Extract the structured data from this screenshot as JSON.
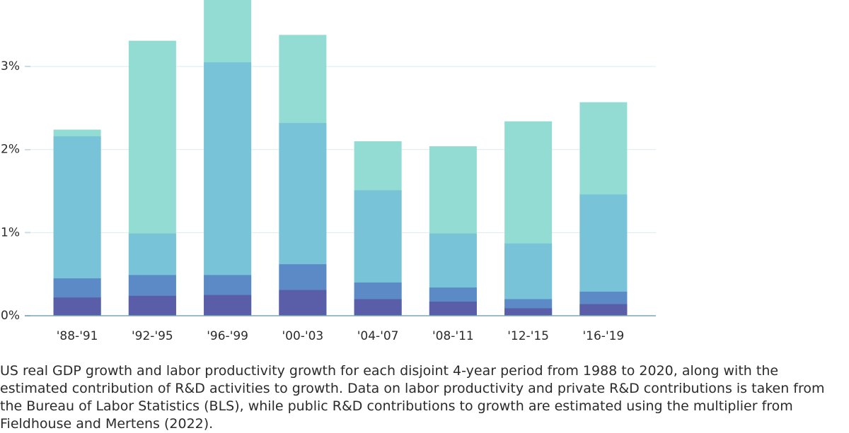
{
  "chart_data": {
    "type": "bar",
    "overlap": true,
    "caption": "US real GDP growth and labor productivity growth for each disjoint 4-year period from 1988 to 2020, along with the estimated contribution of R&D activities to growth. Data on labor productivity and private R&D contributions is taken from the Bureau of Labor Statistics (BLS), while public R&D contributions to growth are estimated using the multiplier from Fieldhouse and Mertens (2022).",
    "categories": [
      "'88-'91",
      "'92-'95",
      "'96-'99",
      "'00-'03",
      "'04-'07",
      "'08-'11",
      "'12-'15",
      "'16-'19"
    ],
    "series": [
      {
        "color": "#93dcd4",
        "values": [
          2.24,
          3.31,
          3.9,
          3.38,
          2.1,
          2.04,
          2.34,
          2.57
        ]
      },
      {
        "color": "#79c3d8",
        "values": [
          2.16,
          0.99,
          3.05,
          2.32,
          1.51,
          0.99,
          0.87,
          1.46
        ]
      },
      {
        "color": "#5b8ac6",
        "values": [
          0.45,
          0.49,
          0.49,
          0.62,
          0.4,
          0.34,
          0.2,
          0.29
        ]
      },
      {
        "color": "#5a5ea8",
        "values": [
          0.22,
          0.24,
          0.25,
          0.31,
          0.2,
          0.17,
          0.09,
          0.14
        ]
      }
    ],
    "ylim": [
      0,
      3.8
    ],
    "yticks": [
      {
        "value": 0,
        "label": "0%"
      },
      {
        "value": 1,
        "label": "1%"
      },
      {
        "value": 2,
        "label": "2%"
      },
      {
        "value": 3,
        "label": "3%"
      }
    ],
    "grid": true
  }
}
